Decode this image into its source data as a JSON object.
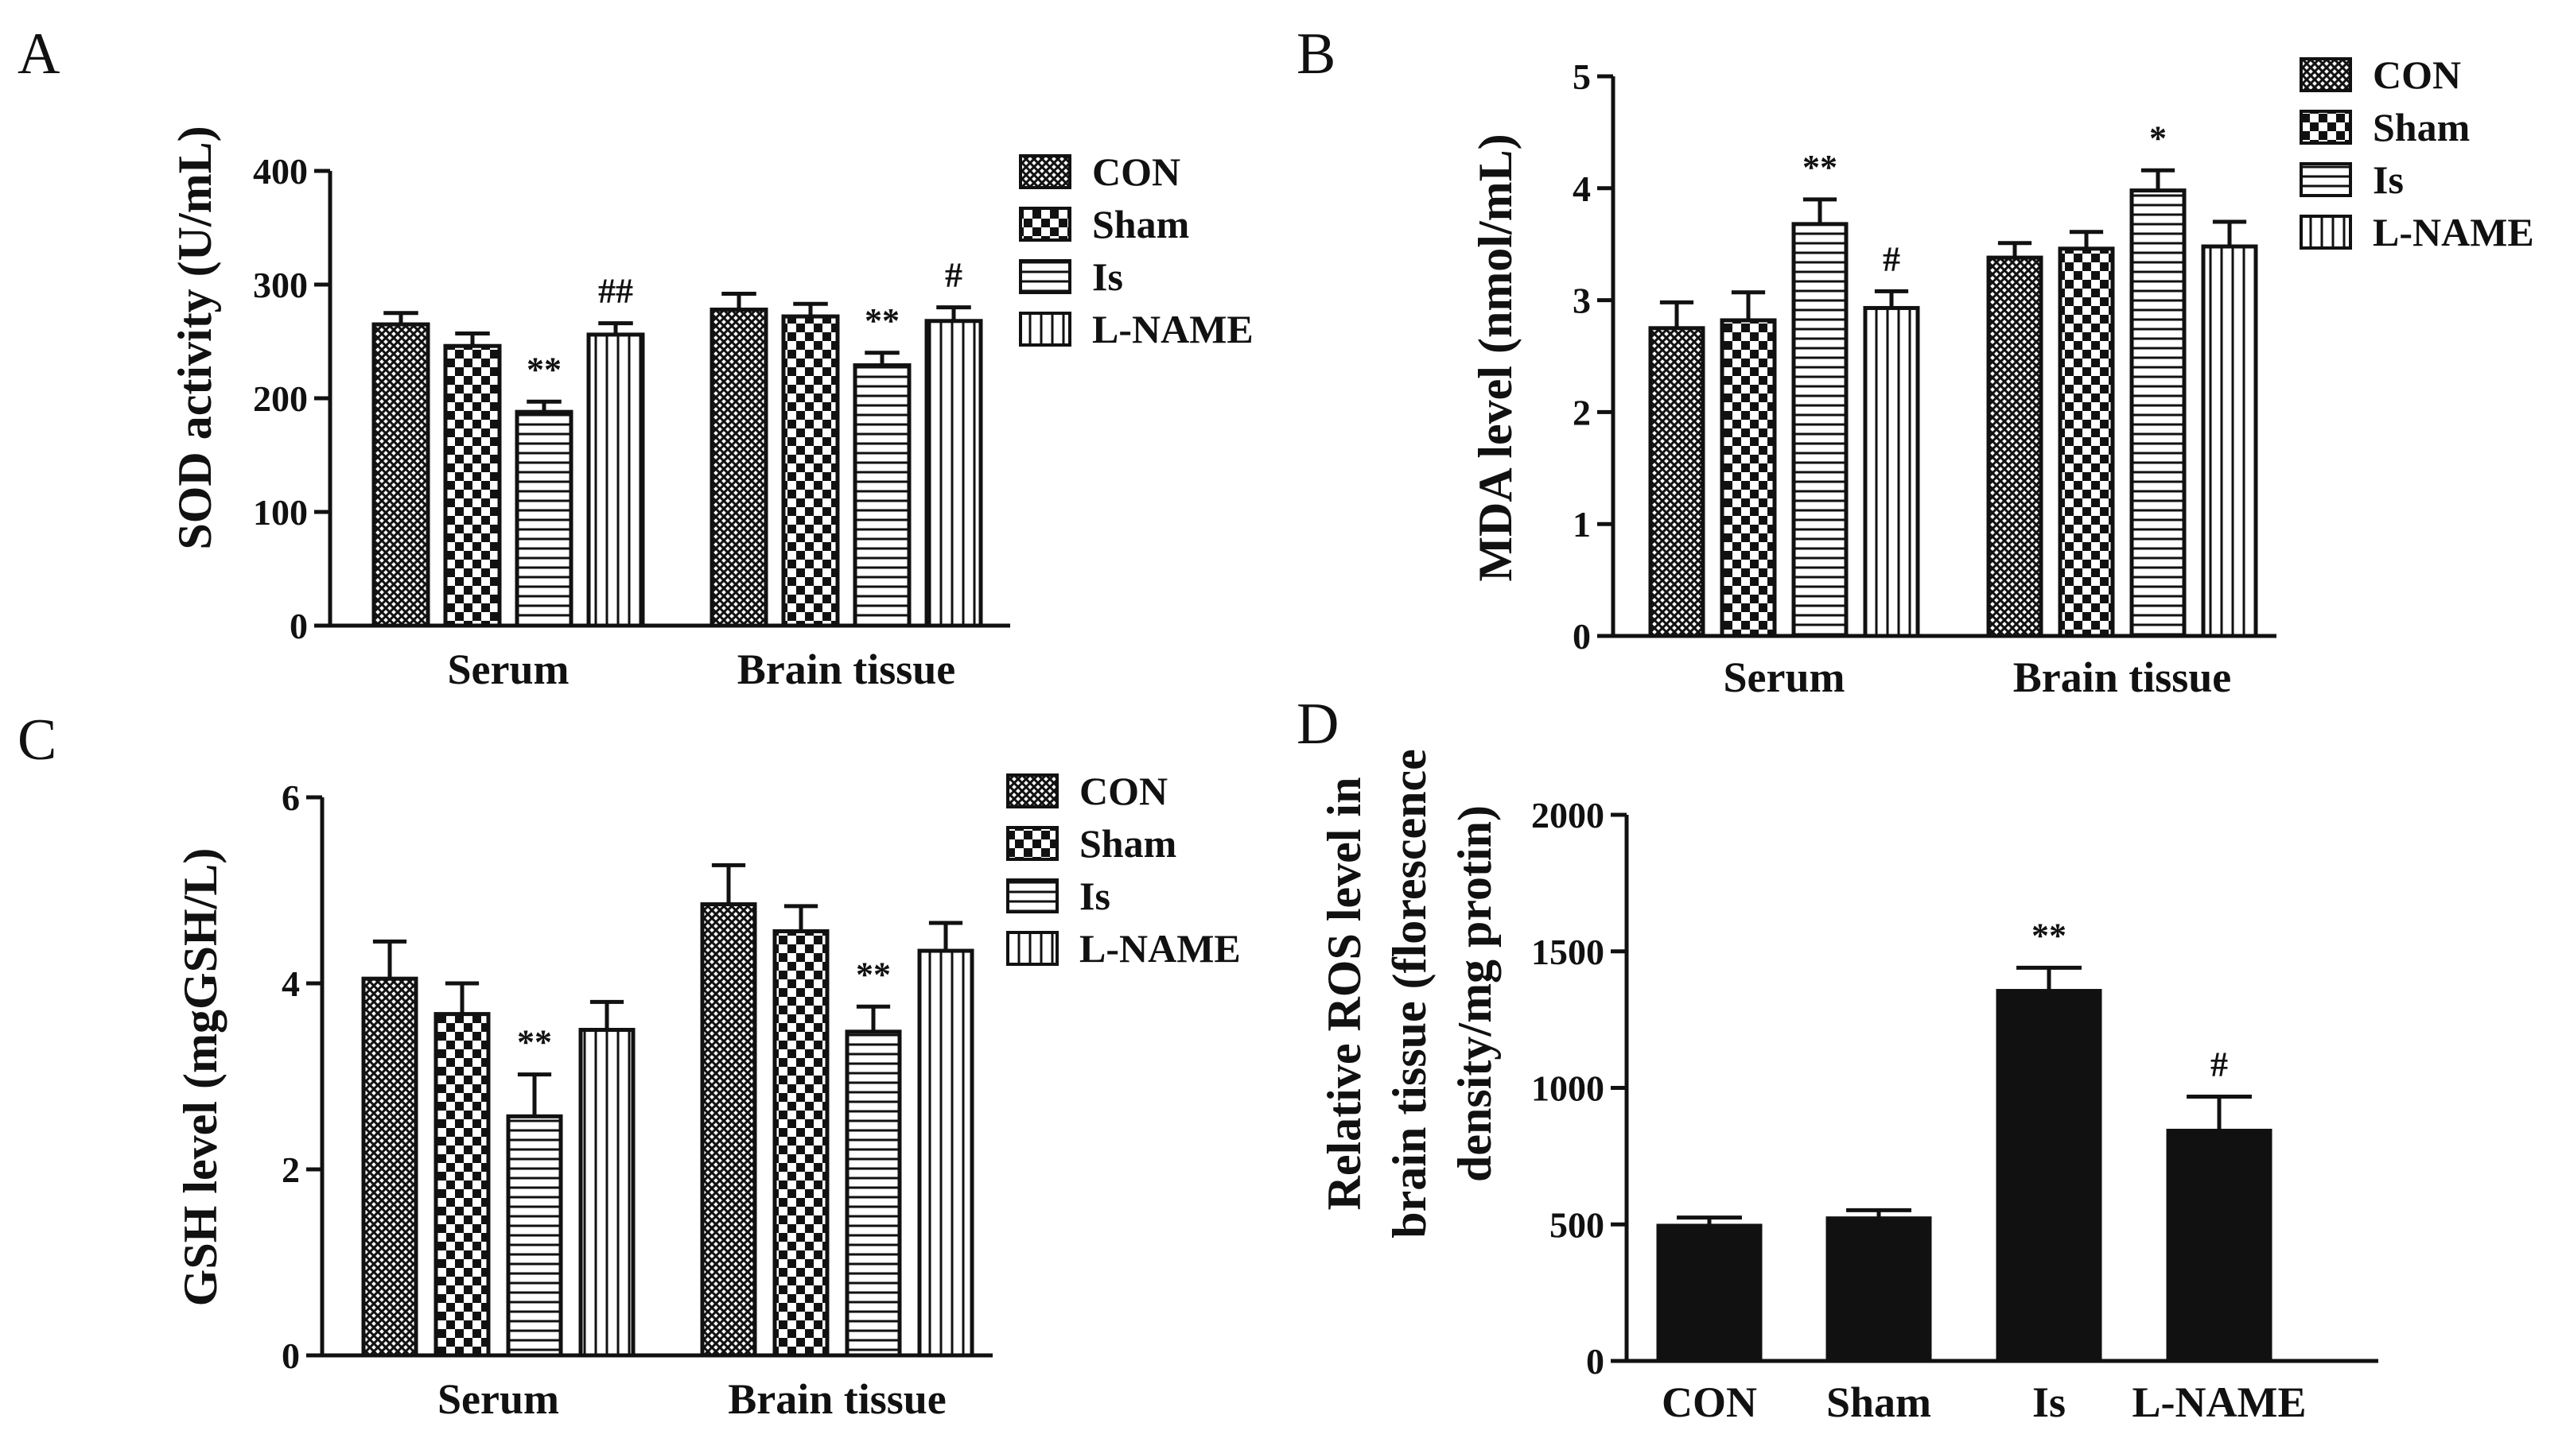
{
  "chart_data": [
    {
      "panel": "A",
      "type": "bar",
      "ylabel": "SOD activity (U/mL)",
      "ylim": [
        0,
        400
      ],
      "yticks": [
        0,
        100,
        200,
        300,
        400
      ],
      "categories": [
        "Serum",
        "Brain tissue"
      ],
      "legend": [
        "CON",
        "Sham",
        "Is",
        "L-NAME"
      ],
      "legend_position": "top-right",
      "series": [
        {
          "name": "CON",
          "values": [
            265,
            278
          ],
          "errors": [
            10,
            14
          ],
          "annotations": [
            "",
            ""
          ]
        },
        {
          "name": "Sham",
          "values": [
            246,
            272
          ],
          "errors": [
            11,
            11
          ],
          "annotations": [
            "",
            ""
          ]
        },
        {
          "name": "Is",
          "values": [
            188,
            229
          ],
          "errors": [
            9,
            11
          ],
          "annotations": [
            "**",
            "**"
          ]
        },
        {
          "name": "L-NAME",
          "values": [
            256,
            268
          ],
          "errors": [
            10,
            12
          ],
          "annotations": [
            "##",
            "#"
          ]
        }
      ]
    },
    {
      "panel": "B",
      "type": "bar",
      "ylabel": "MDA level (nmol/mL)",
      "ylim": [
        0,
        5
      ],
      "yticks": [
        0,
        1,
        2,
        3,
        4,
        5
      ],
      "categories": [
        "Serum",
        "Brain tissue"
      ],
      "legend": [
        "CON",
        "Sham",
        "Is",
        "L-NAME"
      ],
      "legend_position": "top-right",
      "series": [
        {
          "name": "CON",
          "values": [
            2.75,
            3.38
          ],
          "errors": [
            0.23,
            0.13
          ],
          "annotations": [
            "",
            ""
          ]
        },
        {
          "name": "Sham",
          "values": [
            2.82,
            3.46
          ],
          "errors": [
            0.25,
            0.15
          ],
          "annotations": [
            "",
            ""
          ]
        },
        {
          "name": "Is",
          "values": [
            3.68,
            3.98
          ],
          "errors": [
            0.22,
            0.18
          ],
          "annotations": [
            "**",
            "*"
          ]
        },
        {
          "name": "L-NAME",
          "values": [
            2.93,
            3.48
          ],
          "errors": [
            0.15,
            0.22
          ],
          "annotations": [
            "#",
            ""
          ]
        }
      ]
    },
    {
      "panel": "C",
      "type": "bar",
      "ylabel": "GSH level (mgGSH/L)",
      "ylim": [
        0,
        6
      ],
      "yticks": [
        0,
        2,
        4,
        6
      ],
      "categories": [
        "Serum",
        "Brain tissue"
      ],
      "legend": [
        "CON",
        "Sham",
        "Is",
        "L-NAME"
      ],
      "legend_position": "top-right",
      "series": [
        {
          "name": "CON",
          "values": [
            4.05,
            4.85
          ],
          "errors": [
            0.4,
            0.42
          ],
          "annotations": [
            "",
            ""
          ]
        },
        {
          "name": "Sham",
          "values": [
            3.67,
            4.56
          ],
          "errors": [
            0.33,
            0.27
          ],
          "annotations": [
            "",
            ""
          ]
        },
        {
          "name": "Is",
          "values": [
            2.57,
            3.48
          ],
          "errors": [
            0.45,
            0.27
          ],
          "annotations": [
            "**",
            "**"
          ]
        },
        {
          "name": "L-NAME",
          "values": [
            3.5,
            4.35
          ],
          "errors": [
            0.3,
            0.3
          ],
          "annotations": [
            "",
            ""
          ]
        }
      ]
    },
    {
      "panel": "D",
      "type": "bar",
      "ylabel_lines": [
        "Relative ROS level in",
        "brain tissue (florescence",
        "density/mg protin)"
      ],
      "ylim": [
        0,
        2000
      ],
      "yticks": [
        0,
        500,
        1000,
        1500,
        2000
      ],
      "categories": [
        "CON",
        "Sham",
        "Is",
        "L-NAME"
      ],
      "values": [
        495,
        522,
        1355,
        843
      ],
      "errors": [
        30,
        30,
        85,
        125
      ],
      "annotations": [
        "",
        "",
        "**",
        "#"
      ],
      "color": "#111111"
    }
  ]
}
